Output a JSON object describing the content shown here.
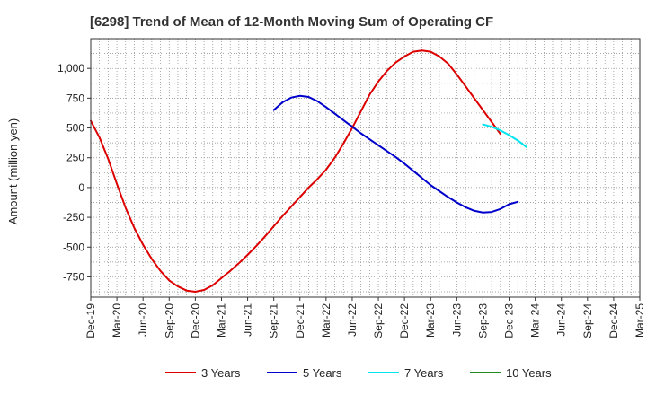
{
  "chart_data": {
    "type": "line",
    "title": "[6298]  Trend of Mean of 12-Month Moving Sum of Operating CF",
    "ylabel": "Amount (million yen)",
    "xlabel": "",
    "ylim": [
      -920,
      1250
    ],
    "yticks": [
      -750,
      -500,
      -250,
      0,
      250,
      500,
      750,
      1000
    ],
    "ytick_labels": [
      "-750",
      "-500",
      "-250",
      "0",
      "250",
      "500",
      "750",
      "1,000"
    ],
    "x_start": "Dec-19",
    "x_end": "Mar-25",
    "xtick_labels": [
      "Dec-19",
      "Mar-20",
      "Jun-20",
      "Sep-20",
      "Dec-20",
      "Mar-21",
      "Jun-21",
      "Sep-21",
      "Dec-21",
      "Mar-22",
      "Jun-22",
      "Sep-22",
      "Dec-22",
      "Mar-23",
      "Jun-23",
      "Sep-23",
      "Dec-23",
      "Mar-24",
      "Jun-24",
      "Sep-24",
      "Dec-24",
      "Mar-25"
    ],
    "grid": true,
    "legend_position": "bottom",
    "series": [
      {
        "name": "3 Years",
        "color": "#dd0000",
        "start_month_index": 0,
        "values": [
          560,
          420,
          240,
          30,
          -170,
          -340,
          -480,
          -600,
          -700,
          -780,
          -830,
          -865,
          -875,
          -860,
          -820,
          -760,
          -700,
          -635,
          -565,
          -490,
          -410,
          -325,
          -240,
          -160,
          -80,
          0,
          70,
          150,
          250,
          370,
          500,
          640,
          780,
          890,
          980,
          1050,
          1100,
          1140,
          1150,
          1140,
          1100,
          1040,
          950,
          850,
          750,
          650,
          550,
          450
        ]
      },
      {
        "name": "5 Years",
        "color": "#0000cc",
        "start_month_index": 21,
        "values": [
          650,
          715,
          755,
          770,
          760,
          725,
          675,
          620,
          565,
          510,
          455,
          405,
          355,
          305,
          255,
          200,
          140,
          80,
          20,
          -30,
          -80,
          -125,
          -165,
          -195,
          -210,
          -205,
          -180,
          -140,
          -120
        ]
      },
      {
        "name": "7 Years",
        "color": "#00e5ee",
        "start_month_index": 45,
        "values": [
          530,
          510,
          480,
          440,
          395,
          340
        ]
      },
      {
        "name": "10 Years",
        "color": "#228b22",
        "start_month_index": 0,
        "values": []
      }
    ]
  }
}
